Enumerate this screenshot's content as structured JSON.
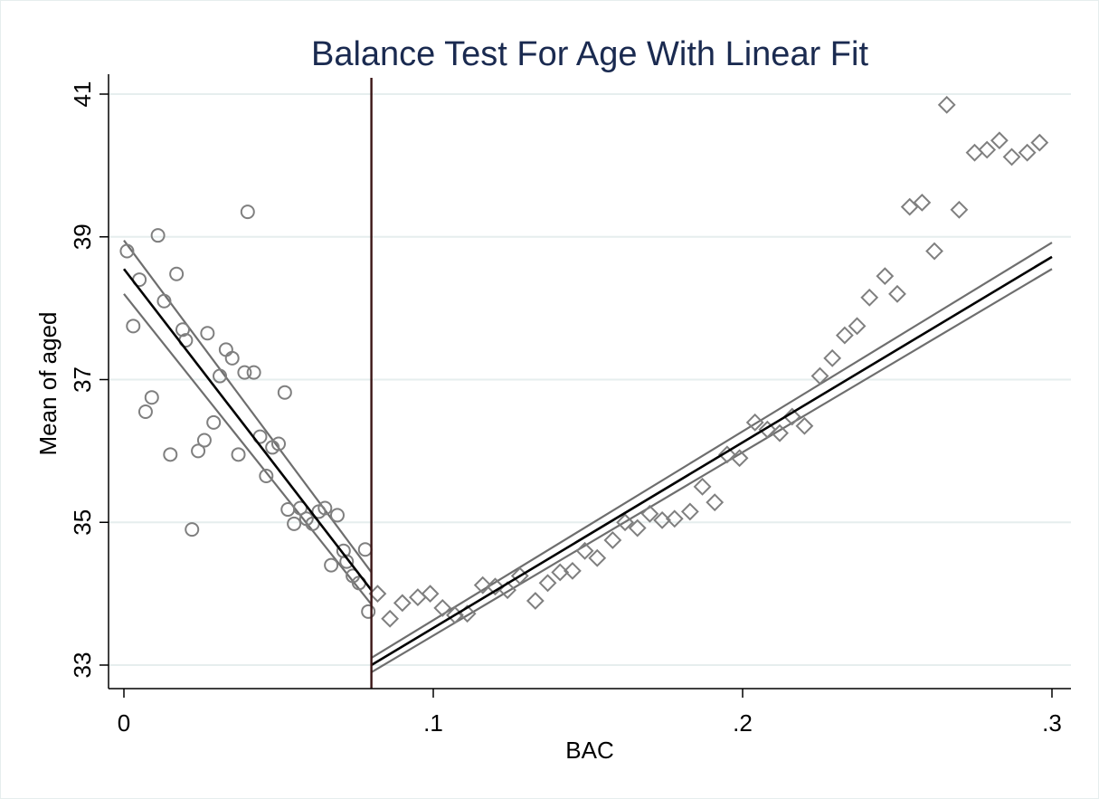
{
  "chart_data": {
    "type": "scatter",
    "title": "Balance Test For Age With Linear Fit",
    "xlabel": "BAC",
    "ylabel": "Mean of aged",
    "xlim": [
      -0.002,
      0.306
    ],
    "ylim": [
      32.7,
      41.3
    ],
    "x_ticks": [
      0,
      0.1,
      0.2,
      0.3
    ],
    "x_tick_labels": [
      "0",
      ".1",
      ".2",
      ".3"
    ],
    "y_ticks": [
      33,
      35,
      37,
      39,
      41
    ],
    "y_tick_labels": [
      "33",
      "35",
      "37",
      "39",
      "41"
    ],
    "grid": "horizontal",
    "legend": "none",
    "cutoff": 0.08,
    "colors": {
      "markers": "#7f7f7f",
      "fit": "#000000",
      "ci": "#6e6e6e",
      "cutoff": "#3a1414",
      "grid": "#e6eeee",
      "title": "#1a2a50"
    },
    "series": [
      {
        "marker": "circle",
        "points": [
          [
            0.001,
            38.8
          ],
          [
            0.003,
            37.75
          ],
          [
            0.005,
            38.4
          ],
          [
            0.007,
            36.55
          ],
          [
            0.009,
            36.75
          ],
          [
            0.011,
            39.02
          ],
          [
            0.013,
            38.1
          ],
          [
            0.015,
            35.95
          ],
          [
            0.017,
            38.48
          ],
          [
            0.019,
            37.7
          ],
          [
            0.02,
            37.55
          ],
          [
            0.022,
            34.9
          ],
          [
            0.024,
            36.0
          ],
          [
            0.026,
            36.15
          ],
          [
            0.027,
            37.65
          ],
          [
            0.029,
            36.4
          ],
          [
            0.031,
            37.05
          ],
          [
            0.033,
            37.42
          ],
          [
            0.035,
            37.3
          ],
          [
            0.037,
            35.95
          ],
          [
            0.039,
            37.1
          ],
          [
            0.04,
            39.35
          ],
          [
            0.042,
            37.1
          ],
          [
            0.044,
            36.2
          ],
          [
            0.046,
            35.65
          ],
          [
            0.048,
            36.05
          ],
          [
            0.05,
            36.1
          ],
          [
            0.052,
            36.82
          ],
          [
            0.053,
            35.18
          ],
          [
            0.055,
            34.98
          ],
          [
            0.057,
            35.2
          ],
          [
            0.059,
            35.05
          ],
          [
            0.061,
            34.98
          ],
          [
            0.063,
            35.15
          ],
          [
            0.065,
            35.2
          ],
          [
            0.067,
            34.4
          ],
          [
            0.069,
            35.1
          ],
          [
            0.071,
            34.6
          ],
          [
            0.072,
            34.45
          ],
          [
            0.074,
            34.25
          ],
          [
            0.076,
            34.15
          ],
          [
            0.078,
            34.62
          ],
          [
            0.079,
            33.75
          ]
        ]
      },
      {
        "marker": "diamond",
        "points": [
          [
            0.082,
            34.0
          ],
          [
            0.086,
            33.65
          ],
          [
            0.09,
            33.87
          ],
          [
            0.095,
            33.95
          ],
          [
            0.099,
            34.0
          ],
          [
            0.103,
            33.8
          ],
          [
            0.107,
            33.7
          ],
          [
            0.111,
            33.72
          ],
          [
            0.116,
            34.12
          ],
          [
            0.12,
            34.1
          ],
          [
            0.124,
            34.05
          ],
          [
            0.128,
            34.25
          ],
          [
            0.133,
            33.9
          ],
          [
            0.137,
            34.15
          ],
          [
            0.141,
            34.3
          ],
          [
            0.145,
            34.32
          ],
          [
            0.149,
            34.6
          ],
          [
            0.153,
            34.5
          ],
          [
            0.158,
            34.75
          ],
          [
            0.162,
            35.0
          ],
          [
            0.166,
            34.92
          ],
          [
            0.17,
            35.12
          ],
          [
            0.174,
            35.03
          ],
          [
            0.178,
            35.05
          ],
          [
            0.183,
            35.15
          ],
          [
            0.187,
            35.5
          ],
          [
            0.191,
            35.28
          ],
          [
            0.195,
            35.95
          ],
          [
            0.199,
            35.9
          ],
          [
            0.204,
            36.4
          ],
          [
            0.208,
            36.3
          ],
          [
            0.212,
            36.25
          ],
          [
            0.216,
            36.48
          ],
          [
            0.22,
            36.35
          ],
          [
            0.225,
            37.05
          ],
          [
            0.229,
            37.3
          ],
          [
            0.233,
            37.62
          ],
          [
            0.237,
            37.75
          ],
          [
            0.241,
            38.15
          ],
          [
            0.246,
            38.45
          ],
          [
            0.25,
            38.2
          ],
          [
            0.254,
            39.42
          ],
          [
            0.258,
            39.48
          ],
          [
            0.262,
            38.8
          ],
          [
            0.266,
            40.85
          ],
          [
            0.27,
            39.38
          ],
          [
            0.275,
            40.18
          ],
          [
            0.279,
            40.22
          ],
          [
            0.283,
            40.35
          ],
          [
            0.287,
            40.12
          ],
          [
            0.292,
            40.18
          ],
          [
            0.296,
            40.32
          ]
        ]
      }
    ],
    "fit_lines": [
      {
        "x": [
          0.0,
          0.08
        ],
        "y": [
          38.55,
          34.05
        ]
      },
      {
        "x": [
          0.08,
          0.3
        ],
        "y": [
          33.0,
          38.72
        ]
      }
    ],
    "ci_bands": [
      {
        "x": [
          0.0,
          0.08
        ],
        "upper": [
          38.95,
          34.3
        ],
        "lower": [
          38.2,
          33.85
        ]
      },
      {
        "x": [
          0.08,
          0.3
        ],
        "upper": [
          33.1,
          38.92
        ],
        "lower": [
          32.9,
          38.55
        ]
      }
    ]
  }
}
